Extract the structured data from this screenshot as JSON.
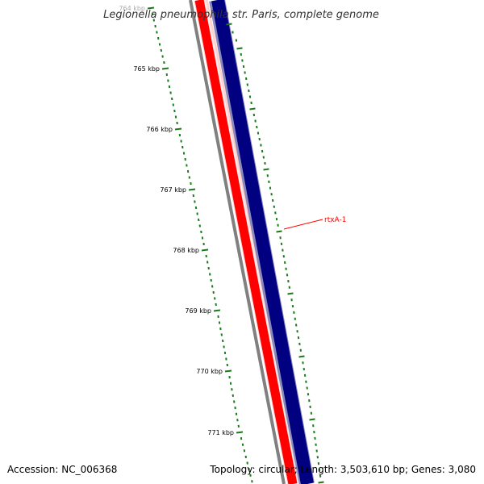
{
  "title": "Legionella pneumophila str. Paris, complete genome",
  "axis": {
    "unit": "kbp",
    "tick_labels": [
      "764 kbp",
      "765 kbp",
      "766 kbp",
      "767 kbp",
      "768 kbp",
      "769 kbp",
      "770 kbp",
      "771 kbp"
    ]
  },
  "tracks": [
    {
      "name": "backbone",
      "color": "#808080"
    },
    {
      "name": "reverse-strand-cds",
      "color": "#ff0000"
    },
    {
      "name": "forward-strand-cds",
      "color": "#000080"
    }
  ],
  "gene_annotation": {
    "label": "rtxA-1",
    "color": "#ff0000"
  },
  "tick_color": "#1a7a1a",
  "footer": {
    "accession": "Accession: NC_006368",
    "summary": "Topology: circular; Length: 3,503,610 bp; Genes: 3,080"
  }
}
